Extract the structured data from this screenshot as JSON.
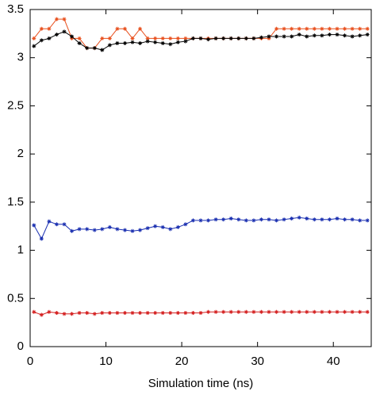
{
  "chart_data": {
    "type": "line",
    "xlabel": "Simulation time (ns)",
    "x": [
      0.5,
      1.5,
      2.5,
      3.5,
      4.5,
      5.5,
      6.5,
      7.5,
      8.5,
      9.5,
      10.5,
      11.5,
      12.5,
      13.5,
      14.5,
      15.5,
      16.5,
      17.5,
      18.5,
      19.5,
      20.5,
      21.5,
      22.5,
      23.5,
      24.5,
      25.5,
      26.5,
      27.5,
      28.5,
      29.5,
      30.5,
      31.5,
      32.5,
      33.5,
      34.5,
      35.5,
      36.5,
      37.5,
      38.5,
      39.5,
      40.5,
      41.5,
      42.5,
      43.5,
      44.5
    ],
    "series": [
      {
        "color": "#e8501e",
        "values": [
          3.2,
          3.3,
          3.3,
          3.4,
          3.4,
          3.2,
          3.2,
          3.1,
          3.1,
          3.2,
          3.2,
          3.3,
          3.3,
          3.2,
          3.3,
          3.2,
          3.2,
          3.2,
          3.2,
          3.2,
          3.2,
          3.2,
          3.2,
          3.2,
          3.2,
          3.2,
          3.2,
          3.2,
          3.2,
          3.2,
          3.2,
          3.2,
          3.3,
          3.3,
          3.3,
          3.3,
          3.3,
          3.3,
          3.3,
          3.3,
          3.3,
          3.3,
          3.3,
          3.3,
          3.3
        ]
      },
      {
        "color": "#000000",
        "values": [
          3.12,
          3.18,
          3.2,
          3.24,
          3.27,
          3.22,
          3.15,
          3.1,
          3.1,
          3.08,
          3.13,
          3.15,
          3.15,
          3.16,
          3.15,
          3.17,
          3.16,
          3.15,
          3.14,
          3.16,
          3.17,
          3.2,
          3.2,
          3.19,
          3.2,
          3.2,
          3.2,
          3.2,
          3.2,
          3.2,
          3.21,
          3.22,
          3.22,
          3.22,
          3.22,
          3.24,
          3.22,
          3.23,
          3.23,
          3.24,
          3.24,
          3.23,
          3.22,
          3.23,
          3.24
        ]
      },
      {
        "color": "#1a2fb0",
        "values": [
          1.26,
          1.12,
          1.3,
          1.27,
          1.27,
          1.2,
          1.22,
          1.22,
          1.21,
          1.22,
          1.24,
          1.22,
          1.21,
          1.2,
          1.21,
          1.23,
          1.25,
          1.24,
          1.22,
          1.24,
          1.27,
          1.31,
          1.31,
          1.31,
          1.32,
          1.32,
          1.33,
          1.32,
          1.31,
          1.31,
          1.32,
          1.32,
          1.31,
          1.32,
          1.33,
          1.34,
          1.33,
          1.32,
          1.32,
          1.32,
          1.33,
          1.32,
          1.32,
          1.31,
          1.31
        ]
      },
      {
        "color": "#d42020",
        "values": [
          0.36,
          0.33,
          0.36,
          0.35,
          0.34,
          0.34,
          0.35,
          0.35,
          0.34,
          0.35,
          0.35,
          0.35,
          0.35,
          0.35,
          0.35,
          0.35,
          0.35,
          0.35,
          0.35,
          0.35,
          0.35,
          0.35,
          0.35,
          0.36,
          0.36,
          0.36,
          0.36,
          0.36,
          0.36,
          0.36,
          0.36,
          0.36,
          0.36,
          0.36,
          0.36,
          0.36,
          0.36,
          0.36,
          0.36,
          0.36,
          0.36,
          0.36,
          0.36,
          0.36,
          0.36
        ]
      }
    ],
    "xlim": [
      0,
      45
    ],
    "xticks": [
      0,
      10,
      20,
      30,
      40
    ],
    "ylim": [
      0,
      3.5
    ],
    "yticks": [
      0,
      0.5,
      1,
      1.5,
      2,
      2.5,
      3,
      3.5
    ],
    "grid": false
  }
}
